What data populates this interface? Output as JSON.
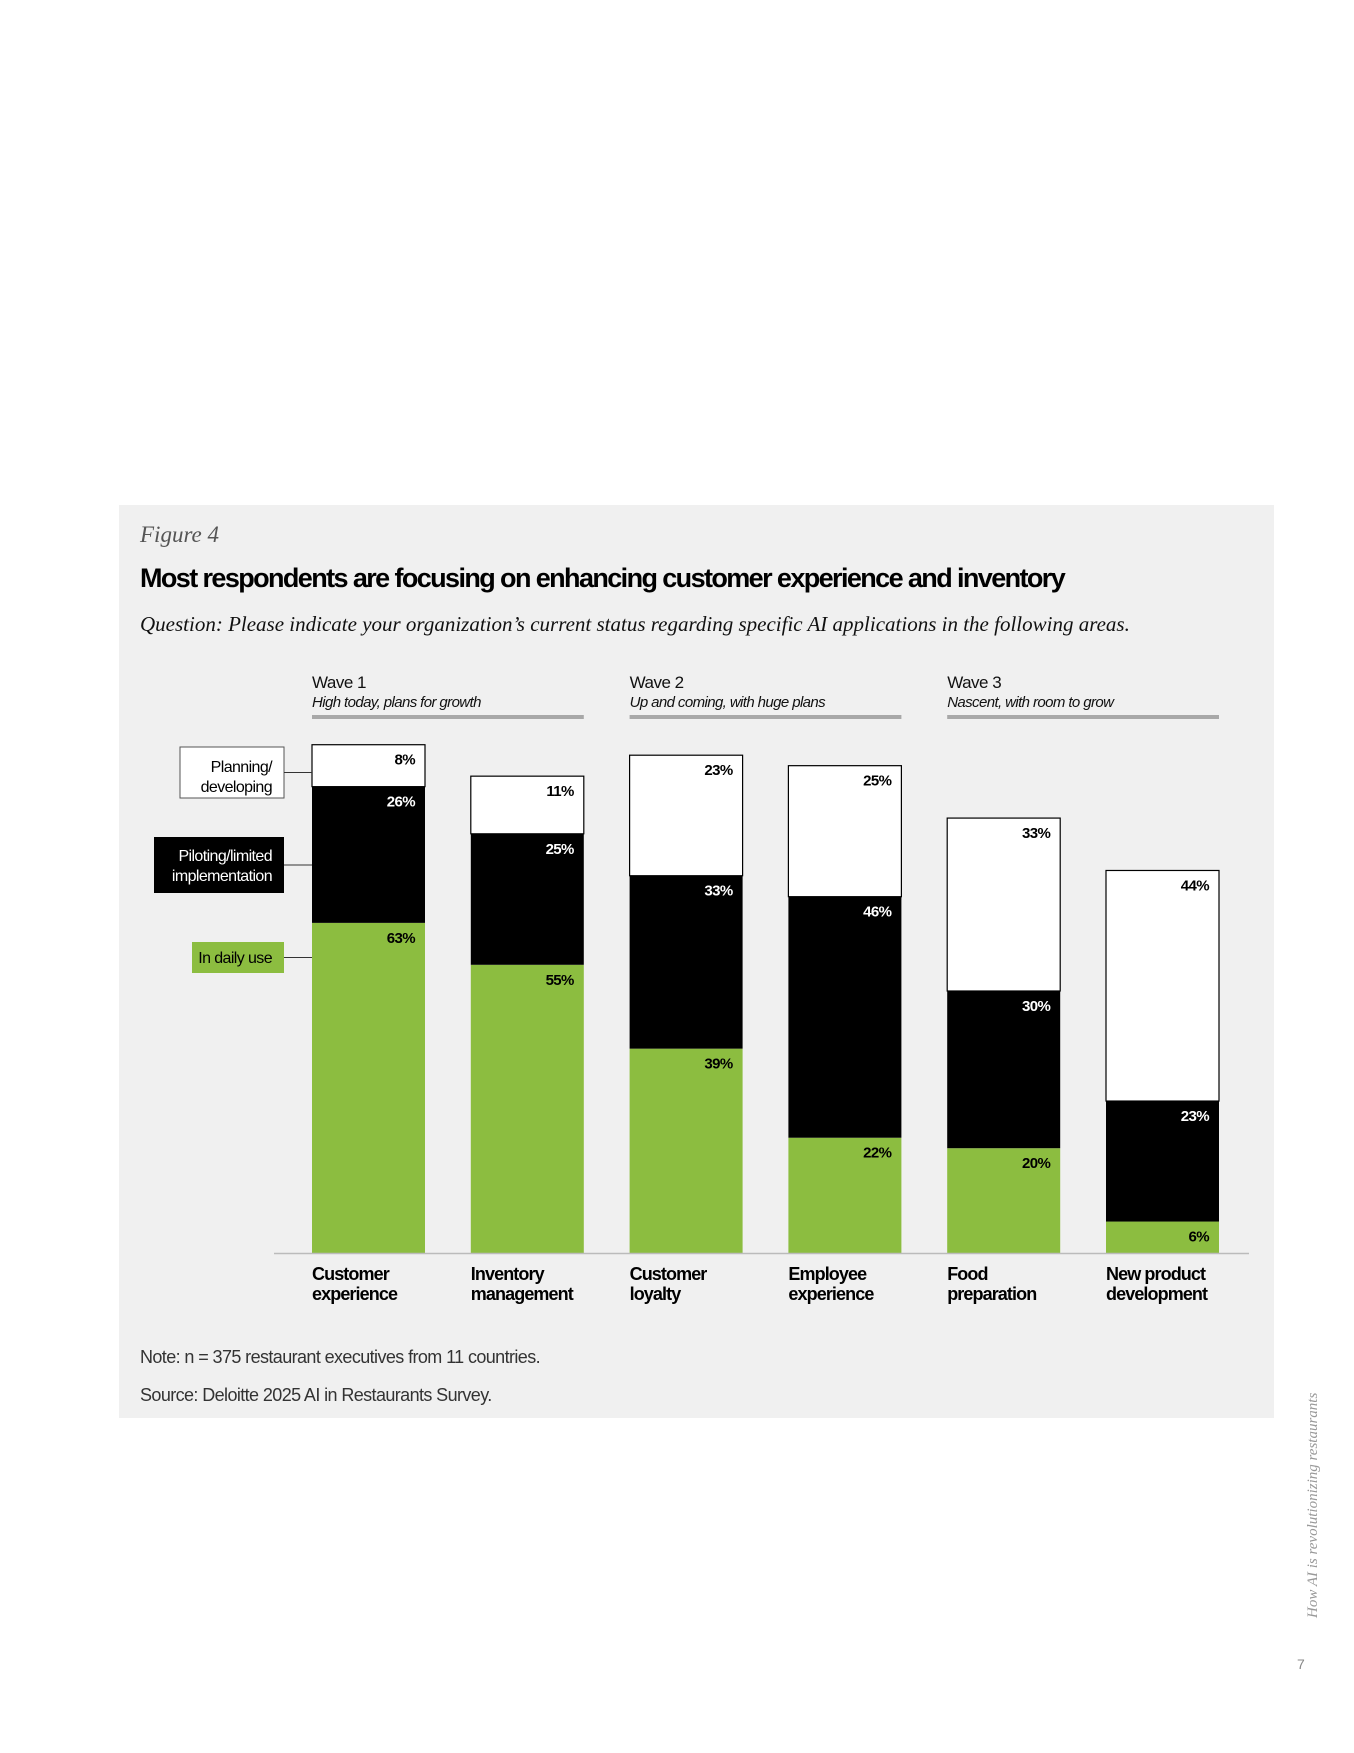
{
  "figure_label": "Figure 4",
  "title": "Most respondents are focusing on enhancing customer experience and inventory",
  "question": "Question: Please indicate your organization’s current status regarding specific AI applications in the following areas.",
  "note": "Note: n = 375 restaurant executives from 11 countries.",
  "source": "Source: Deloitte 2025 AI in Restaurants Survey.",
  "footer": {
    "running_title": "How AI is revolutionizing restaurants",
    "page_number": "7"
  },
  "colors": {
    "in_daily_use": "#8cbd40",
    "piloting": "#000000",
    "planning": "#ffffff",
    "wave_rule": "#a8a8a8",
    "panel": "#f0f0f0"
  },
  "chart_data": {
    "type": "bar",
    "stacked": true,
    "unit": "%",
    "ylim": [
      0,
      100
    ],
    "grid": false,
    "legend_placement": "left",
    "waves": [
      {
        "label": "Wave 1",
        "subtitle": "High today, plans for growth",
        "categories": [
          "Customer experience",
          "Inventory management"
        ]
      },
      {
        "label": "Wave 2",
        "subtitle": "Up and coming, with huge plans",
        "categories": [
          "Customer loyalty",
          "Employee experience"
        ]
      },
      {
        "label": "Wave 3",
        "subtitle": "Nascent, with room to grow",
        "categories": [
          "Food preparation",
          "New product development"
        ]
      }
    ],
    "categories": [
      [
        "Customer",
        "experience"
      ],
      [
        "Inventory",
        "management"
      ],
      [
        "Customer",
        "loyalty"
      ],
      [
        "Employee",
        "experience"
      ],
      [
        "Food",
        "preparation"
      ],
      [
        "New product",
        "development"
      ]
    ],
    "series": [
      {
        "name": "In daily use",
        "values": [
          63,
          55,
          39,
          22,
          20,
          6
        ]
      },
      {
        "name": "Piloting/limited implementation",
        "values": [
          26,
          25,
          33,
          46,
          30,
          23
        ]
      },
      {
        "name": "Planning/ developing",
        "values": [
          8,
          11,
          23,
          25,
          33,
          44
        ]
      }
    ]
  }
}
